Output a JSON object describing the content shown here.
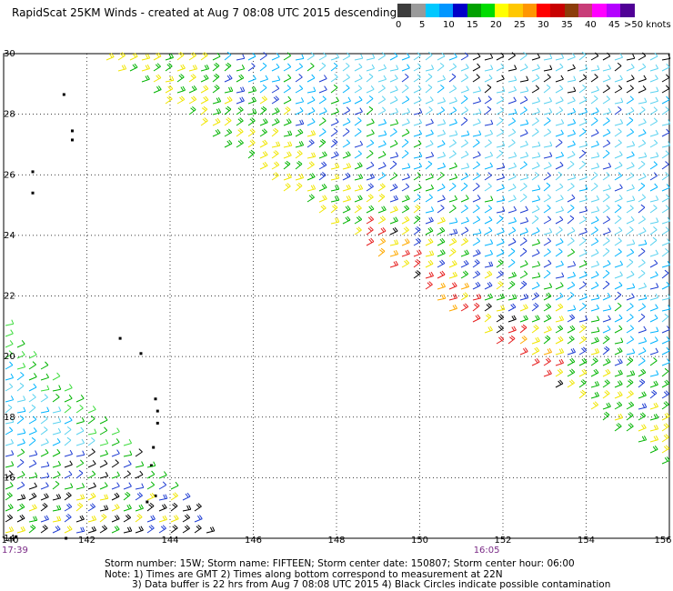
{
  "header": {
    "title": "RapidScat 25KM Winds - created at Aug  7 08:08 UTC 2015 descending"
  },
  "colorbar": {
    "unit_label": ">50 knots",
    "labels": [
      "0",
      "5",
      "10",
      "15",
      "20",
      "25",
      "30",
      "35",
      "40",
      "45"
    ],
    "colors": [
      "#3c3c3c",
      "#9a9a9a",
      "#00c8ff",
      "#0096ff",
      "#0000c8",
      "#00a000",
      "#00dc00",
      "#ffff00",
      "#ffc800",
      "#ff9600",
      "#ff0000",
      "#c80000",
      "#8c3c0a",
      "#c83c78",
      "#ff00ff",
      "#b400ff",
      "#500096"
    ]
  },
  "chart_data": {
    "type": "map",
    "x_axis": {
      "ticks": [
        140,
        142,
        144,
        146,
        148,
        150,
        152,
        154,
        156
      ],
      "range": [
        140,
        156
      ]
    },
    "y_axis": {
      "ticks": [
        14,
        16,
        18,
        20,
        22,
        24,
        26,
        28,
        30
      ],
      "range": [
        14,
        30
      ]
    },
    "grid": true,
    "time_labels": [
      {
        "text": "17:39",
        "lon": 140.0
      },
      {
        "text": "16:05",
        "lon": 151.6
      }
    ]
  },
  "footer": {
    "line1": "Storm number: 15W;  Storm name: FIFTEEN;  Storm center date: 150807;  Storm center hour: 06:00",
    "line2": "Note: 1) Times are GMT  2) Times along bottom correspond to measurement at 22N",
    "line3": "3) Data buffer is 22 hrs from Aug  7 08:08 UTC 2015   4) Black Circles indicate possible contamination"
  }
}
